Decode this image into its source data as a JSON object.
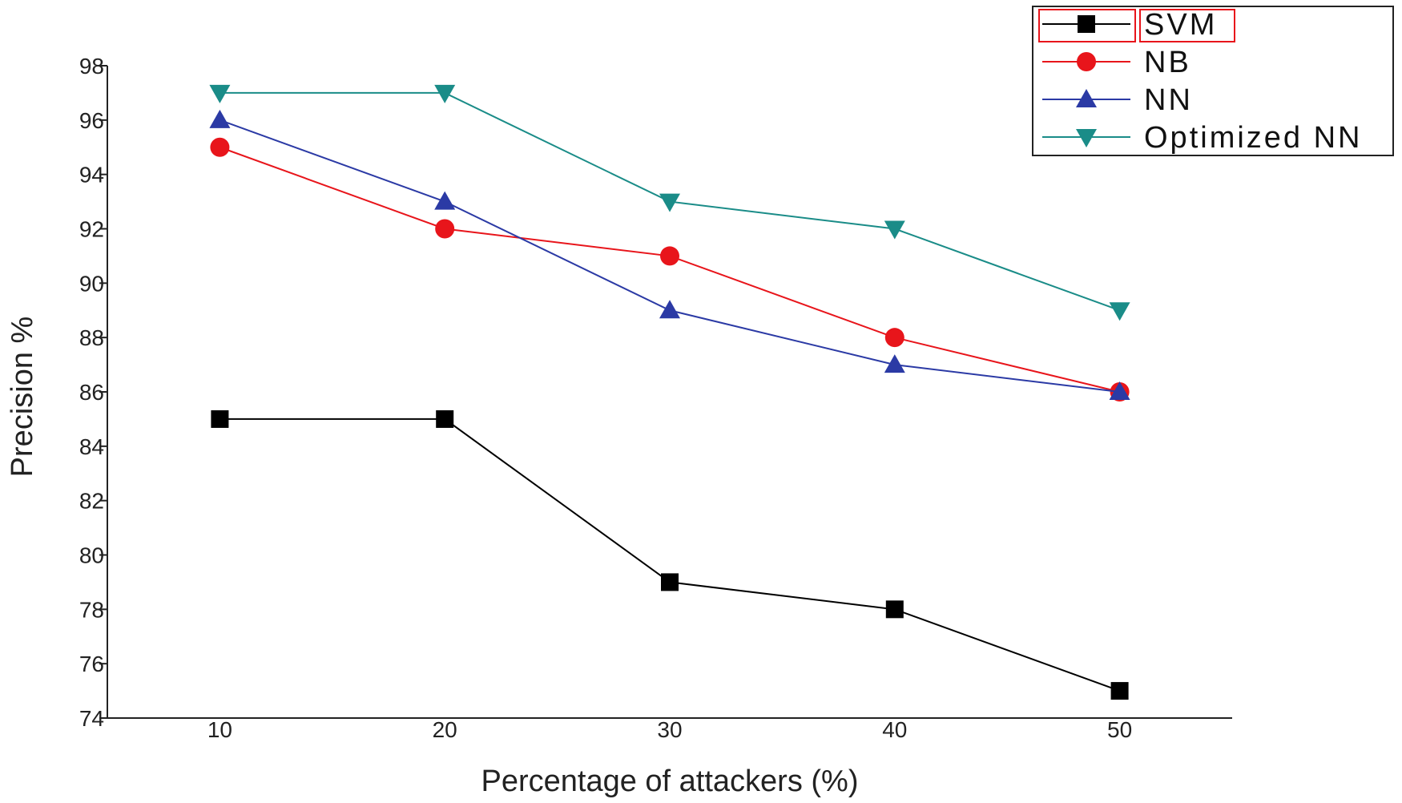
{
  "chart_data": {
    "type": "line",
    "title": "",
    "xlabel": "Percentage of attackers (%)",
    "ylabel": "Precision %",
    "x": [
      10,
      20,
      30,
      40,
      50
    ],
    "xlim": [
      5,
      55
    ],
    "ylim": [
      74,
      98
    ],
    "yticks": [
      74,
      76,
      78,
      80,
      82,
      84,
      86,
      88,
      90,
      92,
      94,
      96,
      98
    ],
    "grid": false,
    "legend_position": "top-right",
    "series": [
      {
        "name": "SVM",
        "color": "#000000",
        "marker": "square",
        "values": [
          85,
          85,
          79,
          78,
          75
        ]
      },
      {
        "name": "NB",
        "color": "#e8151b",
        "marker": "circle",
        "values": [
          95,
          92,
          91,
          88,
          86
        ]
      },
      {
        "name": "NN",
        "color": "#2b3aa5",
        "marker": "triangle-up",
        "values": [
          96,
          93,
          89,
          87,
          86
        ]
      },
      {
        "name": "Optimized NN",
        "color": "#1a8c88",
        "marker": "triangle-down",
        "values": [
          97,
          97,
          93,
          92,
          89
        ]
      }
    ]
  }
}
